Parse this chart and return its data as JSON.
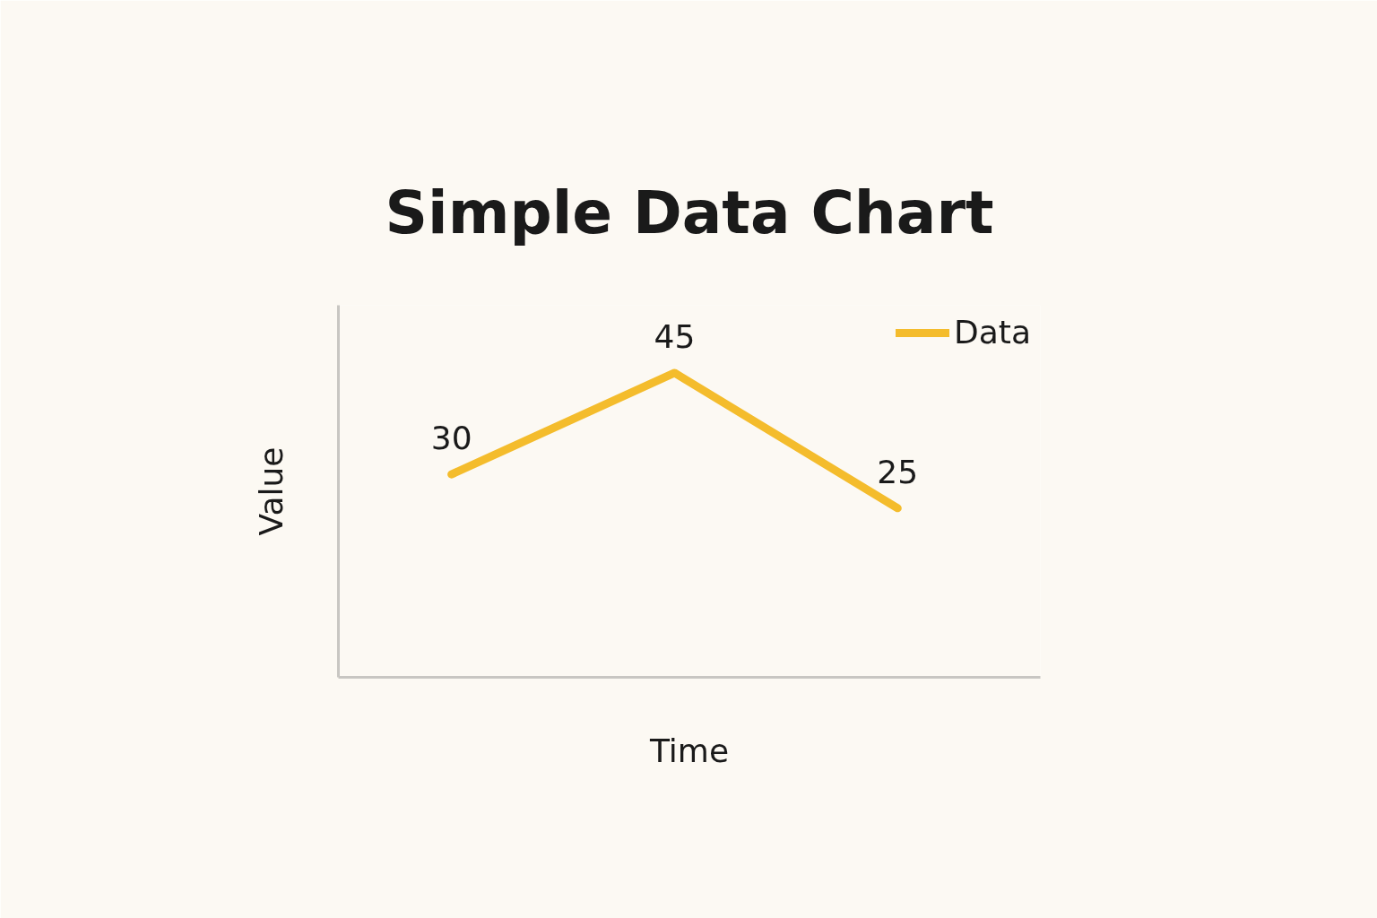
{
  "chart_data": {
    "type": "line",
    "title": "Simple Data Chart",
    "xlabel": "Time",
    "ylabel": "Value",
    "categories": [
      null,
      null,
      null
    ],
    "series": [
      {
        "name": "Data",
        "color": "#f4bc2c",
        "values": [
          30,
          45,
          25
        ]
      }
    ],
    "ylim": [
      0,
      55
    ],
    "data_labels": true,
    "legend": "top right",
    "grid": false,
    "marker": "none",
    "line_style": "solid"
  }
}
